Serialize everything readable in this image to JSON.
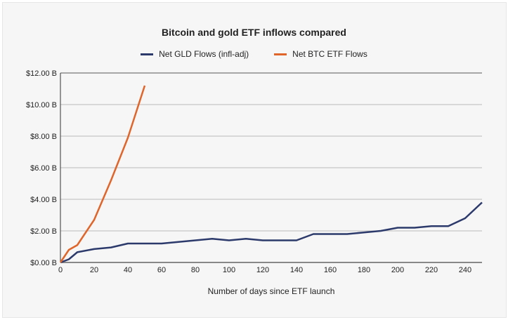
{
  "chart_data": {
    "type": "line",
    "title": "Bitcoin and gold ETF inflows compared",
    "xlabel": "Number of days since ETF launch",
    "ylabel": "",
    "xlim": [
      0,
      250
    ],
    "ylim": [
      0,
      12
    ],
    "xticks": [
      0,
      20,
      40,
      60,
      80,
      100,
      120,
      140,
      160,
      180,
      200,
      220,
      240
    ],
    "yticks": [
      0,
      2,
      4,
      6,
      8,
      10,
      12
    ],
    "ytick_labels": [
      "$0.00 B",
      "$2.00 B",
      "$4.00 B",
      "$6.00 B",
      "$8.00 B",
      "$10.00 B",
      "$12.00 B"
    ],
    "grid": "horizontal",
    "legend": "top",
    "series": [
      {
        "name": "Net GLD Flows (infl-adj)",
        "color": "#2c3a6b",
        "x": [
          0,
          5,
          10,
          20,
          30,
          40,
          60,
          70,
          80,
          90,
          100,
          110,
          120,
          140,
          150,
          170,
          180,
          190,
          200,
          210,
          220,
          230,
          240,
          250
        ],
        "y": [
          0,
          0.2,
          0.65,
          0.85,
          0.95,
          1.2,
          1.2,
          1.3,
          1.4,
          1.5,
          1.4,
          1.5,
          1.4,
          1.4,
          1.8,
          1.8,
          1.9,
          2.0,
          2.2,
          2.2,
          2.3,
          2.3,
          2.8,
          3.8
        ]
      },
      {
        "name": "Net BTC ETF Flows",
        "color": "#e0652a",
        "x": [
          0,
          5,
          10,
          20,
          30,
          40,
          50
        ],
        "y": [
          0,
          0.8,
          1.1,
          2.7,
          5.2,
          7.9,
          11.2
        ]
      }
    ]
  }
}
